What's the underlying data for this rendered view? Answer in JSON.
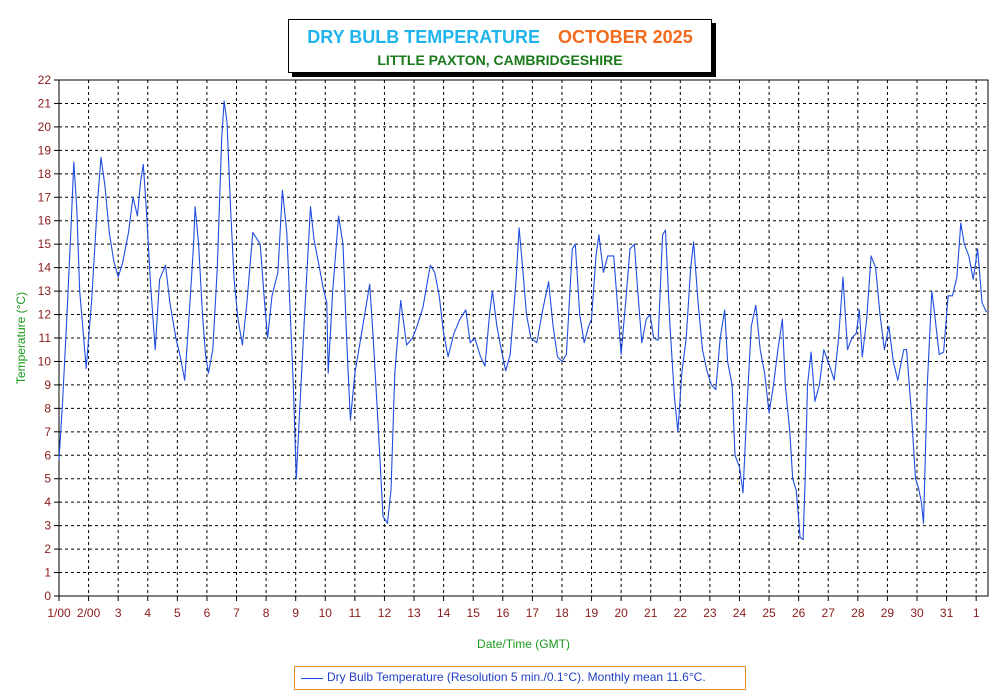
{
  "title": {
    "main": "DRY BULB TEMPERATURE",
    "month": "OCTOBER 2025",
    "location": "LITTLE PAXTON, CAMBRIDGESHIRE"
  },
  "legend": {
    "label": "Dry Bulb Temperature (Resolution 5 min./0.1°C). Monthly mean 11.6°C."
  },
  "colors": {
    "title_main": "#1fb5ec",
    "title_month": "#f26b1d",
    "subtitle": "#1a7a1a",
    "axis_label": "#1a9a1a",
    "tick_label": "#8b1a1a",
    "series": "#1f4ee0",
    "grid": "#000000"
  },
  "chart_data": {
    "type": "line",
    "title": "DRY BULB TEMPERATURE OCTOBER 2025",
    "subtitle": "LITTLE PAXTON, CAMBRIDGESHIRE",
    "xlabel": "Date/Time (GMT)",
    "ylabel": "Temperature (°C)",
    "xlim": [
      1,
      32.4
    ],
    "ylim": [
      0,
      22
    ],
    "grid": true,
    "legend_position": "bottom-center",
    "x_tick_labels": [
      "1/00",
      "2/00",
      "3",
      "4",
      "5",
      "6",
      "7",
      "8",
      "9",
      "10",
      "11",
      "12",
      "13",
      "14",
      "15",
      "16",
      "17",
      "18",
      "19",
      "20",
      "21",
      "22",
      "23",
      "24",
      "25",
      "26",
      "27",
      "28",
      "29",
      "30",
      "31",
      "1"
    ],
    "y_ticks": [
      0,
      1,
      2,
      3,
      4,
      5,
      6,
      7,
      8,
      9,
      10,
      11,
      12,
      13,
      14,
      15,
      16,
      17,
      18,
      19,
      20,
      21,
      22
    ],
    "series": [
      {
        "name": "Dry Bulb Temperature (Resolution 5 min./0.1°C). Monthly mean 11.6°C.",
        "points": [
          [
            1.0,
            5.8
          ],
          [
            1.12,
            8.3
          ],
          [
            1.25,
            11.5
          ],
          [
            1.4,
            15.5
          ],
          [
            1.5,
            18.5
          ],
          [
            1.6,
            16.5
          ],
          [
            1.7,
            13.0
          ],
          [
            1.82,
            11.2
          ],
          [
            1.92,
            9.7
          ],
          [
            2.0,
            11.0
          ],
          [
            2.1,
            12.5
          ],
          [
            2.3,
            16.8
          ],
          [
            2.42,
            18.7
          ],
          [
            2.55,
            17.5
          ],
          [
            2.7,
            15.5
          ],
          [
            2.85,
            14.3
          ],
          [
            3.0,
            13.6
          ],
          [
            3.15,
            14.2
          ],
          [
            3.35,
            15.5
          ],
          [
            3.5,
            17.0
          ],
          [
            3.65,
            16.2
          ],
          [
            3.75,
            17.6
          ],
          [
            3.85,
            18.4
          ],
          [
            3.95,
            16.5
          ],
          [
            4.1,
            13.2
          ],
          [
            4.25,
            10.5
          ],
          [
            4.4,
            13.5
          ],
          [
            4.6,
            14.1
          ],
          [
            4.75,
            12.5
          ],
          [
            4.95,
            11.0
          ],
          [
            5.1,
            10.2
          ],
          [
            5.25,
            9.2
          ],
          [
            5.4,
            12.0
          ],
          [
            5.55,
            15.0
          ],
          [
            5.6,
            16.6
          ],
          [
            5.72,
            15.0
          ],
          [
            5.85,
            12.0
          ],
          [
            5.95,
            10.3
          ],
          [
            6.05,
            9.5
          ],
          [
            6.2,
            10.5
          ],
          [
            6.35,
            14.0
          ],
          [
            6.5,
            19.5
          ],
          [
            6.58,
            21.1
          ],
          [
            6.68,
            20.2
          ],
          [
            6.8,
            16.5
          ],
          [
            6.92,
            13.5
          ],
          [
            7.05,
            11.8
          ],
          [
            7.2,
            10.7
          ],
          [
            7.35,
            12.5
          ],
          [
            7.55,
            15.5
          ],
          [
            7.8,
            15.0
          ],
          [
            7.95,
            12.5
          ],
          [
            8.05,
            11.0
          ],
          [
            8.2,
            12.8
          ],
          [
            8.4,
            13.8
          ],
          [
            8.55,
            17.3
          ],
          [
            8.7,
            15.5
          ],
          [
            8.8,
            12.5
          ],
          [
            8.92,
            9.0
          ],
          [
            9.02,
            5.0
          ],
          [
            9.12,
            7.5
          ],
          [
            9.3,
            12.0
          ],
          [
            9.5,
            16.6
          ],
          [
            9.62,
            15.2
          ],
          [
            9.8,
            14.0
          ],
          [
            9.92,
            13.2
          ],
          [
            10.05,
            12.5
          ],
          [
            10.1,
            9.5
          ],
          [
            10.25,
            13.0
          ],
          [
            10.45,
            16.2
          ],
          [
            10.6,
            15.0
          ],
          [
            10.72,
            11.0
          ],
          [
            10.85,
            7.5
          ],
          [
            11.0,
            9.5
          ],
          [
            11.2,
            11.0
          ],
          [
            11.5,
            13.3
          ],
          [
            11.62,
            11.0
          ],
          [
            11.8,
            7.0
          ],
          [
            11.95,
            3.4
          ],
          [
            12.1,
            3.1
          ],
          [
            12.22,
            4.5
          ],
          [
            12.35,
            9.5
          ],
          [
            12.55,
            12.6
          ],
          [
            12.75,
            10.7
          ],
          [
            12.95,
            11.0
          ],
          [
            13.1,
            11.5
          ],
          [
            13.3,
            12.3
          ],
          [
            13.55,
            14.1
          ],
          [
            13.7,
            13.8
          ],
          [
            13.85,
            12.8
          ],
          [
            14.0,
            11.2
          ],
          [
            14.15,
            10.2
          ],
          [
            14.35,
            11.2
          ],
          [
            14.55,
            11.8
          ],
          [
            14.75,
            12.2
          ],
          [
            14.9,
            10.8
          ],
          [
            15.05,
            11.0
          ],
          [
            15.25,
            10.2
          ],
          [
            15.4,
            9.8
          ],
          [
            15.55,
            12.0
          ],
          [
            15.65,
            13.0
          ],
          [
            15.8,
            11.5
          ],
          [
            15.95,
            10.5
          ],
          [
            16.1,
            9.6
          ],
          [
            16.25,
            10.3
          ],
          [
            16.45,
            13.5
          ],
          [
            16.55,
            15.7
          ],
          [
            16.65,
            14.3
          ],
          [
            16.8,
            12.0
          ],
          [
            16.95,
            11.0
          ],
          [
            17.15,
            10.8
          ],
          [
            17.35,
            12.2
          ],
          [
            17.55,
            13.4
          ],
          [
            17.7,
            11.5
          ],
          [
            17.85,
            10.2
          ],
          [
            18.0,
            10.0
          ],
          [
            18.15,
            10.3
          ],
          [
            18.35,
            14.8
          ],
          [
            18.45,
            15.0
          ],
          [
            18.6,
            12.0
          ],
          [
            18.75,
            10.8
          ],
          [
            18.9,
            11.5
          ],
          [
            19.0,
            11.8
          ],
          [
            19.15,
            14.5
          ],
          [
            19.25,
            15.4
          ],
          [
            19.4,
            13.8
          ],
          [
            19.55,
            14.5
          ],
          [
            19.75,
            14.5
          ],
          [
            19.9,
            12.0
          ],
          [
            20.0,
            10.3
          ],
          [
            20.15,
            12.5
          ],
          [
            20.3,
            14.8
          ],
          [
            20.45,
            15.0
          ],
          [
            20.55,
            13.2
          ],
          [
            20.7,
            10.8
          ],
          [
            20.85,
            11.8
          ],
          [
            20.98,
            12.0
          ],
          [
            21.1,
            11.0
          ],
          [
            21.25,
            10.9
          ],
          [
            21.4,
            15.4
          ],
          [
            21.5,
            15.6
          ],
          [
            21.65,
            11.5
          ],
          [
            21.8,
            8.5
          ],
          [
            21.92,
            7.0
          ],
          [
            22.05,
            9.5
          ],
          [
            22.2,
            11.0
          ],
          [
            22.35,
            14.0
          ],
          [
            22.45,
            15.1
          ],
          [
            22.6,
            12.5
          ],
          [
            22.75,
            10.5
          ],
          [
            22.9,
            9.6
          ],
          [
            23.05,
            9.0
          ],
          [
            23.2,
            8.8
          ],
          [
            23.35,
            11.0
          ],
          [
            23.5,
            12.2
          ],
          [
            23.6,
            10.0
          ],
          [
            23.75,
            9.0
          ],
          [
            23.85,
            6.0
          ],
          [
            24.0,
            5.5
          ],
          [
            24.12,
            4.4
          ],
          [
            24.25,
            8.0
          ],
          [
            24.4,
            11.5
          ],
          [
            24.55,
            12.4
          ],
          [
            24.7,
            10.5
          ],
          [
            24.85,
            9.5
          ],
          [
            25.0,
            7.8
          ],
          [
            25.15,
            9.0
          ],
          [
            25.3,
            10.5
          ],
          [
            25.45,
            11.8
          ],
          [
            25.55,
            9.0
          ],
          [
            25.7,
            7.0
          ],
          [
            25.8,
            5.0
          ],
          [
            25.92,
            4.5
          ],
          [
            26.05,
            2.5
          ],
          [
            26.15,
            2.4
          ],
          [
            26.22,
            5.0
          ],
          [
            26.3,
            9.0
          ],
          [
            26.42,
            10.4
          ],
          [
            26.55,
            8.3
          ],
          [
            26.7,
            9.0
          ],
          [
            26.85,
            10.5
          ],
          [
            27.05,
            9.8
          ],
          [
            27.2,
            9.2
          ],
          [
            27.35,
            11.0
          ],
          [
            27.5,
            13.6
          ],
          [
            27.65,
            10.5
          ],
          [
            27.8,
            11.0
          ],
          [
            27.95,
            11.2
          ],
          [
            28.05,
            12.2
          ],
          [
            28.15,
            10.2
          ],
          [
            28.3,
            11.8
          ],
          [
            28.45,
            14.5
          ],
          [
            28.6,
            14.0
          ],
          [
            28.75,
            12.0
          ],
          [
            28.9,
            10.5
          ],
          [
            29.05,
            11.5
          ],
          [
            29.2,
            10.0
          ],
          [
            29.35,
            9.2
          ],
          [
            29.55,
            10.5
          ],
          [
            29.65,
            10.5
          ],
          [
            29.8,
            8.0
          ],
          [
            29.95,
            5.0
          ],
          [
            30.05,
            4.6
          ],
          [
            30.15,
            4.0
          ],
          [
            30.22,
            3.1
          ],
          [
            30.35,
            9.0
          ],
          [
            30.5,
            13.0
          ],
          [
            30.6,
            12.0
          ],
          [
            30.75,
            10.3
          ],
          [
            30.9,
            10.4
          ],
          [
            31.05,
            12.8
          ],
          [
            31.2,
            12.8
          ],
          [
            31.35,
            13.6
          ],
          [
            31.48,
            15.9
          ],
          [
            31.6,
            15.0
          ],
          [
            31.75,
            14.5
          ],
          [
            31.9,
            13.5
          ],
          [
            32.05,
            14.8
          ],
          [
            32.2,
            12.5
          ],
          [
            32.35,
            12.1
          ]
        ]
      }
    ]
  }
}
